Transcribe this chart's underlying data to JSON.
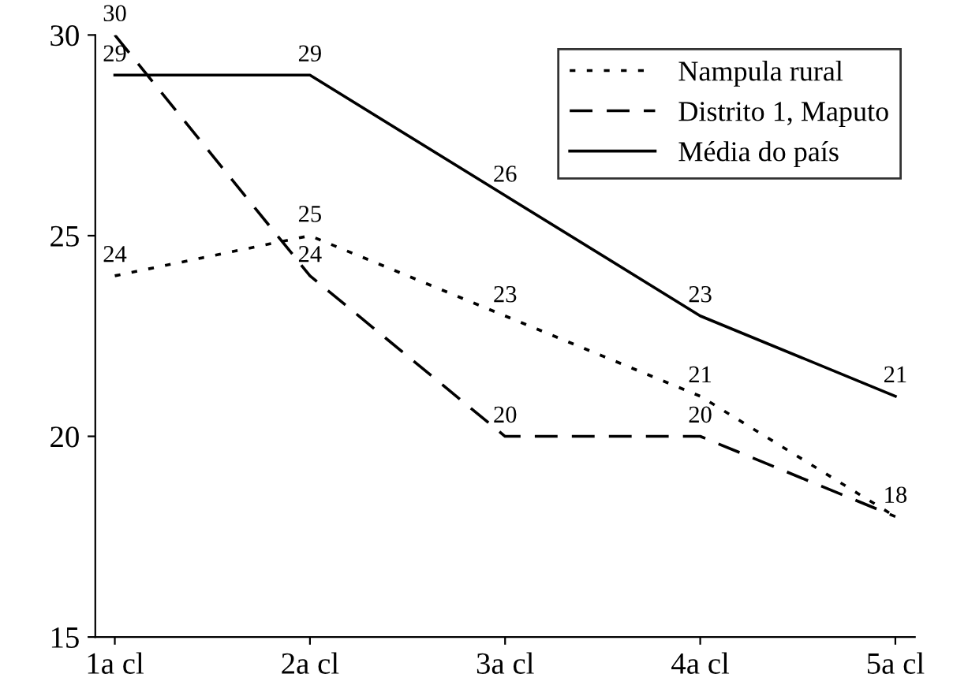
{
  "chart_data": {
    "type": "line",
    "categories": [
      "1a cl",
      "2a cl",
      "3a cl",
      "4a cl",
      "5a cl"
    ],
    "series": [
      {
        "name": "Nampula rural",
        "color": "#000000",
        "line_style": "dotted",
        "values": [
          24,
          25,
          23,
          21,
          18
        ],
        "value_labels": [
          "24",
          "25",
          "23",
          "21",
          "18"
        ]
      },
      {
        "name": "Distrito 1, Maputo",
        "color": "#000000",
        "line_style": "dashed",
        "values": [
          30,
          24,
          20,
          20,
          18
        ],
        "value_labels": [
          "30",
          "24",
          "20",
          "20",
          null
        ]
      },
      {
        "name": "Média do país",
        "color": "#000000",
        "line_style": "solid",
        "values": [
          29,
          29,
          26,
          23,
          21
        ],
        "value_labels": [
          "29",
          "29",
          "26",
          "23",
          "21"
        ]
      }
    ],
    "ylim": [
      15,
      30
    ],
    "yticks": [
      15,
      20,
      25,
      30
    ],
    "grid": false,
    "legend": "top right",
    "marker": "none"
  }
}
